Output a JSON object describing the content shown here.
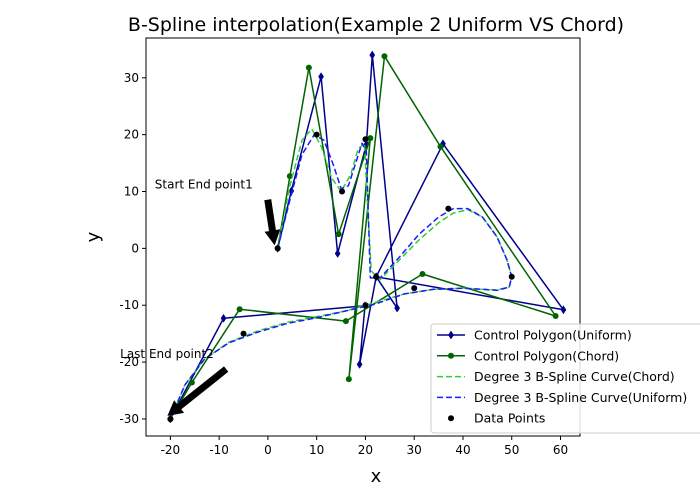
{
  "chart_data": {
    "type": "line",
    "title": "B-Spline interpolation(Example 2 Uniform VS Chord)",
    "xlabel": "x",
    "ylabel": "y",
    "xlim": [
      -25,
      64
    ],
    "ylim": [
      -33,
      37
    ],
    "xticks": [
      -20,
      -10,
      0,
      10,
      20,
      30,
      40,
      50,
      60
    ],
    "yticks": [
      -30,
      -20,
      -10,
      0,
      10,
      20,
      30
    ],
    "grid": false,
    "legend_location": "lower right",
    "series": [
      {
        "name": "Control Polygon(Uniform)",
        "style": "solid",
        "marker": "diamond",
        "color": "#00008b",
        "x": [
          2,
          4.8,
          10.9,
          14.3,
          20.2,
          21.4,
          26.5,
          22.2,
          35.9,
          60.6,
          22.2,
          18.8,
          19.9,
          -9.1,
          -20
        ],
        "y": [
          0,
          10.1,
          30.2,
          -0.9,
          18.3,
          34,
          -10.5,
          -5,
          18.4,
          -10.8,
          -5,
          -20.4,
          -10.1,
          -12.3,
          -30
        ]
      },
      {
        "name": "Control Polygon(Chord)",
        "style": "solid",
        "marker": "circle",
        "color": "#006400",
        "x": [
          2,
          4.5,
          8.4,
          14.5,
          21,
          16.6,
          23.9,
          35.4,
          59,
          31.7,
          16,
          -5.8,
          -15.6,
          -20
        ],
        "y": [
          0,
          12.7,
          31.8,
          2.5,
          19.4,
          -23,
          33.8,
          17.9,
          -11.9,
          -4.5,
          -12.8,
          -10.7,
          -23.6,
          -30
        ]
      },
      {
        "name": "Degree 3 B-Spline Curve(Chord)",
        "style": "dashed",
        "marker": "none",
        "color": "#32cd32",
        "x": [
          2,
          4.5,
          7,
          9,
          11,
          13,
          15,
          17,
          18.5,
          19.8,
          20.4,
          21.2,
          23,
          27,
          31,
          35,
          38,
          41,
          44,
          47,
          49,
          50,
          49.5,
          47,
          44,
          40,
          34,
          28,
          22,
          16,
          10,
          4,
          -2,
          -8,
          -13,
          -17,
          -20
        ],
        "y": [
          0,
          11,
          19,
          21,
          17.8,
          12.5,
          10,
          13,
          17.5,
          18.5,
          8,
          -4,
          -5.5,
          -2,
          1.5,
          4.5,
          6.2,
          6.8,
          5.5,
          2,
          -2,
          -5,
          -6.8,
          -7.3,
          -7.2,
          -7,
          -7.2,
          -8,
          -9.5,
          -11,
          -12,
          -13,
          -14.5,
          -16.5,
          -19.5,
          -24,
          -30
        ]
      },
      {
        "name": "Degree 3 B-Spline Curve(Uniform)",
        "style": "dashed",
        "marker": "none",
        "color": "#1a1aff",
        "x": [
          2,
          4.5,
          7,
          9.5,
          11.5,
          13.5,
          15,
          16.5,
          18,
          19.3,
          20.2,
          21,
          23,
          27,
          31,
          35,
          38,
          41,
          44,
          47,
          49,
          50,
          49.5,
          47,
          44,
          40,
          34,
          28,
          22,
          16,
          10,
          4,
          -2,
          -8,
          -13,
          -17,
          -20
        ],
        "y": [
          0,
          8.5,
          16.5,
          20,
          19,
          14.5,
          10.5,
          11,
          15,
          18.5,
          17,
          -5.2,
          -5.2,
          -1.5,
          2.5,
          5.5,
          7,
          7,
          5.5,
          2,
          -2,
          -5,
          -6.8,
          -7.4,
          -7.2,
          -7,
          -7.2,
          -8,
          -9.8,
          -11,
          -12.2,
          -13.2,
          -14.7,
          -16.6,
          -19.5,
          -24,
          -30
        ]
      },
      {
        "name": "Data Points",
        "style": "none",
        "marker": "circle",
        "color": "#000000",
        "x": [
          2,
          10,
          15.2,
          20,
          22.2,
          37,
          50,
          30,
          20,
          -5,
          -20
        ],
        "y": [
          0,
          20,
          10,
          19.2,
          -5,
          7,
          -5,
          -7,
          -10,
          -15,
          -30
        ]
      }
    ],
    "annotations": [
      {
        "text": "Start End point1",
        "x": 2,
        "y": 0,
        "label_x": -23.2,
        "label_y": 10.5
      },
      {
        "text": "Last End point2",
        "x": -20,
        "y": -30,
        "label_x": -30.3,
        "label_y": -19.3
      }
    ]
  }
}
